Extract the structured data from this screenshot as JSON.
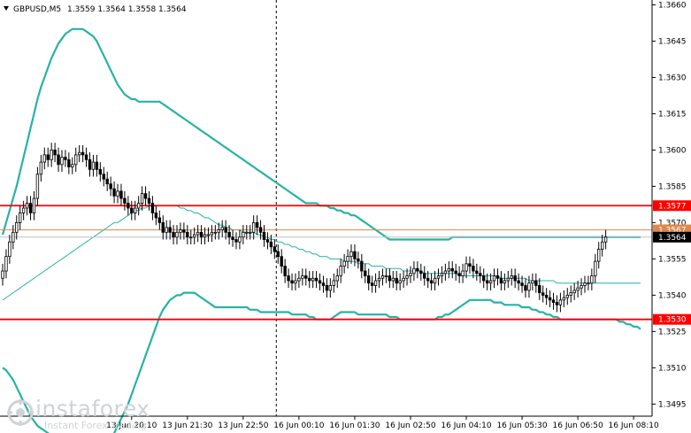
{
  "header": {
    "symbol": "GBPUSD,M5",
    "ohlc": "1.3559 1.3564 1.3558 1.3564"
  },
  "watermark": {
    "brand": "instaforex",
    "tagline": "Instant Forex Trading",
    "logo_icon": "instaforex-logo"
  },
  "colors": {
    "background": "#ffffff",
    "candle": "#000000",
    "bands": "#26b3a6",
    "level_line": "#ff0000",
    "price_line": "#e0874c",
    "bid_line": "#c0c0c0"
  },
  "chart_data": {
    "type": "candlestick",
    "symbol": "GBPUSD",
    "timeframe": "M5",
    "ylim": [
      1.349,
      1.3662
    ],
    "y_ticks": [
      "1.3660",
      "1.3645",
      "1.3630",
      "1.3615",
      "1.3600",
      "1.3585",
      "1.3570",
      "1.3555",
      "1.3540",
      "1.3525",
      "1.3510",
      "1.3495"
    ],
    "x_ticks": [
      {
        "index": 37,
        "label": "13 Jun 20:10"
      },
      {
        "index": 53,
        "label": "13 Jun 21:30"
      },
      {
        "index": 69,
        "label": "13 Jun 22:50"
      },
      {
        "index": 85,
        "label": "16 Jun 00:10"
      },
      {
        "index": 101,
        "label": "16 Jun 01:30"
      },
      {
        "index": 117,
        "label": "16 Jun 02:50"
      },
      {
        "index": 133,
        "label": "16 Jun 04:10"
      },
      {
        "index": 149,
        "label": "16 Jun 05:30"
      },
      {
        "index": 165,
        "label": "16 Jun 06:50"
      },
      {
        "index": 181,
        "label": "16 Jun 08:10"
      }
    ],
    "session_separator_index": 78.5,
    "levels": [
      {
        "value": 1.3577,
        "label": "1.3577",
        "color": "#ff0000"
      },
      {
        "value": 1.353,
        "label": "1.3530",
        "color": "#ff0000"
      }
    ],
    "price_line": {
      "value": 1.3567,
      "label": "1.3567",
      "color": "#e0874c"
    },
    "bid": {
      "value": 1.3564,
      "label": "1.3564"
    },
    "closes": [
      1.355,
      1.3556,
      1.3562,
      1.3566,
      1.357,
      1.3574,
      1.3576,
      1.3578,
      1.3574,
      1.358,
      1.359,
      1.3595,
      1.3598,
      1.3596,
      1.36,
      1.3598,
      1.3594,
      1.3597,
      1.3596,
      1.3593,
      1.3594,
      1.3598,
      1.3599,
      1.3598,
      1.3596,
      1.3592,
      1.3595,
      1.3592,
      1.359,
      1.3588,
      1.3586,
      1.3584,
      1.3581,
      1.3583,
      1.358,
      1.3578,
      1.3576,
      1.3574,
      1.3576,
      1.3578,
      1.3582,
      1.358,
      1.3578,
      1.3574,
      1.3572,
      1.357,
      1.3566,
      1.3568,
      1.3566,
      1.3564,
      1.3566,
      1.3567,
      1.3566,
      1.3564,
      1.3564,
      1.3565,
      1.3566,
      1.3564,
      1.3565,
      1.3565,
      1.3566,
      1.3566,
      1.3567,
      1.3568,
      1.3566,
      1.3564,
      1.3563,
      1.3562,
      1.3564,
      1.3566,
      1.3566,
      1.3566,
      1.357,
      1.3568,
      1.3566,
      1.3563,
      1.3562,
      1.356,
      1.3558,
      1.3556,
      1.3552,
      1.3548,
      1.3546,
      1.3545,
      1.3546,
      1.3547,
      1.3548,
      1.3547,
      1.3546,
      1.3547,
      1.3546,
      1.3545,
      1.3544,
      1.3542,
      1.3544,
      1.3546,
      1.3548,
      1.3552,
      1.3554,
      1.3556,
      1.3558,
      1.3555,
      1.3554,
      1.355,
      1.3548,
      1.3545,
      1.3544,
      1.3546,
      1.3547,
      1.3548,
      1.3548,
      1.3546,
      1.3547,
      1.3545,
      1.3546,
      1.3547,
      1.3548,
      1.3549,
      1.3551,
      1.355,
      1.3549,
      1.3547,
      1.3546,
      1.3545,
      1.3547,
      1.3548,
      1.3549,
      1.355,
      1.3551,
      1.355,
      1.3549,
      1.3548,
      1.355,
      1.3553,
      1.3552,
      1.355,
      1.3549,
      1.3548,
      1.3546,
      1.3545,
      1.3546,
      1.3548,
      1.3547,
      1.3545,
      1.3546,
      1.3547,
      1.3548,
      1.3546,
      1.3545,
      1.3544,
      1.3542,
      1.3545,
      1.3546,
      1.3544,
      1.3541,
      1.354,
      1.3539,
      1.3538,
      1.3537,
      1.3536,
      1.3538,
      1.3539,
      1.354,
      1.3541,
      1.3542,
      1.3543,
      1.3544,
      1.3545,
      1.3545,
      1.3548,
      1.3554,
      1.3559,
      1.3562,
      1.3564
    ],
    "upper_band": [
      1.3565,
      1.357,
      1.3575,
      1.358,
      1.3585,
      1.3591,
      1.3597,
      1.3603,
      1.3609,
      1.3615,
      1.3621,
      1.3626,
      1.363,
      1.3634,
      1.3638,
      1.3641,
      1.3644,
      1.3646,
      1.3648,
      1.3649,
      1.365,
      1.365,
      1.365,
      1.365,
      1.3649,
      1.3648,
      1.3647,
      1.3645,
      1.3642,
      1.3639,
      1.3636,
      1.3633,
      1.363,
      1.3627,
      1.3625,
      1.3623,
      1.3622,
      1.3621,
      1.3621,
      1.362,
      1.362,
      1.362,
      1.362,
      1.362,
      1.362,
      1.362,
      1.3619,
      1.3618,
      1.3617,
      1.3616,
      1.3615,
      1.3614,
      1.3613,
      1.3612,
      1.3611,
      1.361,
      1.3609,
      1.3608,
      1.3607,
      1.3606,
      1.3605,
      1.3604,
      1.3603,
      1.3602,
      1.3601,
      1.36,
      1.3599,
      1.3598,
      1.3597,
      1.3596,
      1.3595,
      1.3594,
      1.3593,
      1.3592,
      1.3591,
      1.359,
      1.3589,
      1.3588,
      1.3587,
      1.3586,
      1.3585,
      1.3584,
      1.3583,
      1.3582,
      1.3581,
      1.358,
      1.3579,
      1.3578,
      1.3578,
      1.3578,
      1.3578,
      1.3577,
      1.3577,
      1.3577,
      1.3576,
      1.3576,
      1.3575,
      1.3575,
      1.3574,
      1.3574,
      1.3573,
      1.3573,
      1.3572,
      1.3571,
      1.357,
      1.3569,
      1.3568,
      1.3567,
      1.3566,
      1.3565,
      1.3564,
      1.3563,
      1.3563,
      1.3563,
      1.3563,
      1.3563,
      1.3563,
      1.3563,
      1.3563,
      1.3563,
      1.3563,
      1.3563,
      1.3563,
      1.3563,
      1.3563,
      1.3563,
      1.3563,
      1.3563,
      1.3563,
      1.3564,
      1.3564,
      1.3564,
      1.3564,
      1.3564,
      1.3564,
      1.3564,
      1.3564,
      1.3564,
      1.3564,
      1.3564,
      1.3564,
      1.3564,
      1.3564,
      1.3564,
      1.3564,
      1.3564,
      1.3564,
      1.3564,
      1.3564,
      1.3564,
      1.3564,
      1.3564,
      1.3564,
      1.3564,
      1.3564,
      1.3564,
      1.3564,
      1.3564,
      1.3564,
      1.3564,
      1.3564,
      1.3564,
      1.3564,
      1.3564,
      1.3564,
      1.3564,
      1.3564,
      1.3564,
      1.3564,
      1.3564,
      1.3564,
      1.3564,
      1.3564,
      1.3564,
      1.3564,
      1.3564,
      1.3564,
      1.3564,
      1.3564,
      1.3564,
      1.3564,
      1.3564,
      1.3564,
      1.3564
    ],
    "middle_band": [
      1.3538,
      1.3539,
      1.354,
      1.3541,
      1.3542,
      1.3543,
      1.3544,
      1.3545,
      1.3546,
      1.3547,
      1.3548,
      1.3549,
      1.355,
      1.3551,
      1.3552,
      1.3553,
      1.3554,
      1.3555,
      1.3556,
      1.3557,
      1.3558,
      1.3559,
      1.356,
      1.3561,
      1.3562,
      1.3563,
      1.3564,
      1.3565,
      1.3566,
      1.3567,
      1.3568,
      1.3569,
      1.357,
      1.357,
      1.3571,
      1.3572,
      1.3573,
      1.3574,
      1.3575,
      1.3575,
      1.3576,
      1.3576,
      1.3577,
      1.3577,
      1.3577,
      1.3577,
      1.3577,
      1.3577,
      1.3577,
      1.3577,
      1.3577,
      1.3576,
      1.3576,
      1.3575,
      1.3575,
      1.3574,
      1.3574,
      1.3573,
      1.3572,
      1.3572,
      1.3571,
      1.357,
      1.3569,
      1.3569,
      1.3568,
      1.3568,
      1.3567,
      1.3567,
      1.3567,
      1.3566,
      1.3566,
      1.3566,
      1.3566,
      1.3565,
      1.3565,
      1.3564,
      1.3564,
      1.3563,
      1.3563,
      1.3562,
      1.3562,
      1.3561,
      1.3561,
      1.356,
      1.356,
      1.3559,
      1.3559,
      1.3558,
      1.3558,
      1.3557,
      1.3557,
      1.3556,
      1.3556,
      1.3556,
      1.3555,
      1.3555,
      1.3555,
      1.3555,
      1.3554,
      1.3554,
      1.3554,
      1.3554,
      1.3553,
      1.3553,
      1.3553,
      1.3553,
      1.3552,
      1.3552,
      1.3552,
      1.3552,
      1.3551,
      1.3551,
      1.3551,
      1.3551,
      1.3551,
      1.355,
      1.355,
      1.355,
      1.355,
      1.355,
      1.355,
      1.3549,
      1.3549,
      1.3549,
      1.3549,
      1.3549,
      1.3549,
      1.3549,
      1.3549,
      1.3549,
      1.3549,
      1.3548,
      1.3548,
      1.3548,
      1.3548,
      1.3548,
      1.3548,
      1.3548,
      1.3548,
      1.3548,
      1.3548,
      1.3548,
      1.3548,
      1.3547,
      1.3547,
      1.3547,
      1.3547,
      1.3547,
      1.3547,
      1.3547,
      1.3547,
      1.3546,
      1.3546,
      1.3546,
      1.3546,
      1.3546,
      1.3546,
      1.3546,
      1.3546,
      1.3545,
      1.3545,
      1.3545,
      1.3545,
      1.3545,
      1.3545,
      1.3545,
      1.3545,
      1.3545,
      1.3545,
      1.3545,
      1.3545,
      1.3545,
      1.3545,
      1.3545,
      1.3545,
      1.3545,
      1.3545,
      1.3545,
      1.3545,
      1.3545,
      1.3545,
      1.3545,
      1.3545,
      1.3545
    ],
    "lower_band": [
      1.351,
      1.3509,
      1.3507,
      1.3505,
      1.3502,
      1.3499,
      1.3496,
      1.3493,
      1.349,
      1.3488,
      1.3486,
      1.3485,
      1.3484,
      1.3483,
      1.3482,
      1.3481,
      1.348,
      1.3479,
      1.3478,
      1.3477,
      1.3476,
      1.3476,
      1.3476,
      1.3476,
      1.3476,
      1.3476,
      1.3476,
      1.3476,
      1.3476,
      1.3477,
      1.3478,
      1.348,
      1.3483,
      1.3486,
      1.3489,
      1.3492,
      1.3495,
      1.3499,
      1.3503,
      1.3507,
      1.3511,
      1.3515,
      1.3519,
      1.3523,
      1.3527,
      1.3531,
      1.3534,
      1.3536,
      1.3538,
      1.3539,
      1.354,
      1.354,
      1.3541,
      1.3541,
      1.3541,
      1.3541,
      1.354,
      1.3539,
      1.3538,
      1.3537,
      1.3536,
      1.3535,
      1.3535,
      1.3535,
      1.3535,
      1.3535,
      1.3535,
      1.3535,
      1.3535,
      1.3535,
      1.3535,
      1.3534,
      1.3534,
      1.3534,
      1.3533,
      1.3533,
      1.3533,
      1.3533,
      1.3533,
      1.3533,
      1.3533,
      1.3533,
      1.3533,
      1.3532,
      1.3532,
      1.3532,
      1.3532,
      1.3532,
      1.3531,
      1.3531,
      1.353,
      1.353,
      1.353,
      1.353,
      1.353,
      1.3531,
      1.3532,
      1.3533,
      1.3533,
      1.3533,
      1.3533,
      1.3533,
      1.3532,
      1.3532,
      1.3532,
      1.3532,
      1.3532,
      1.3532,
      1.3532,
      1.3532,
      1.3532,
      1.3531,
      1.3531,
      1.3531,
      1.353,
      1.353,
      1.353,
      1.353,
      1.353,
      1.353,
      1.353,
      1.353,
      1.353,
      1.353,
      1.353,
      1.3531,
      1.3531,
      1.3532,
      1.3532,
      1.3533,
      1.3534,
      1.3535,
      1.3536,
      1.3537,
      1.3538,
      1.3538,
      1.3538,
      1.3538,
      1.3538,
      1.3538,
      1.3538,
      1.3537,
      1.3537,
      1.3537,
      1.3536,
      1.3536,
      1.3536,
      1.3536,
      1.3536,
      1.3535,
      1.3535,
      1.3535,
      1.3534,
      1.3534,
      1.3533,
      1.3533,
      1.3532,
      1.3532,
      1.3531,
      1.3531,
      1.353,
      1.353,
      1.353,
      1.353,
      1.353,
      1.353,
      1.353,
      1.353,
      1.353,
      1.353,
      1.353,
      1.353,
      1.353,
      1.353,
      1.353,
      1.353,
      1.353,
      1.3529,
      1.3529,
      1.3528,
      1.3528,
      1.3527,
      1.3527,
      1.3526
    ]
  }
}
